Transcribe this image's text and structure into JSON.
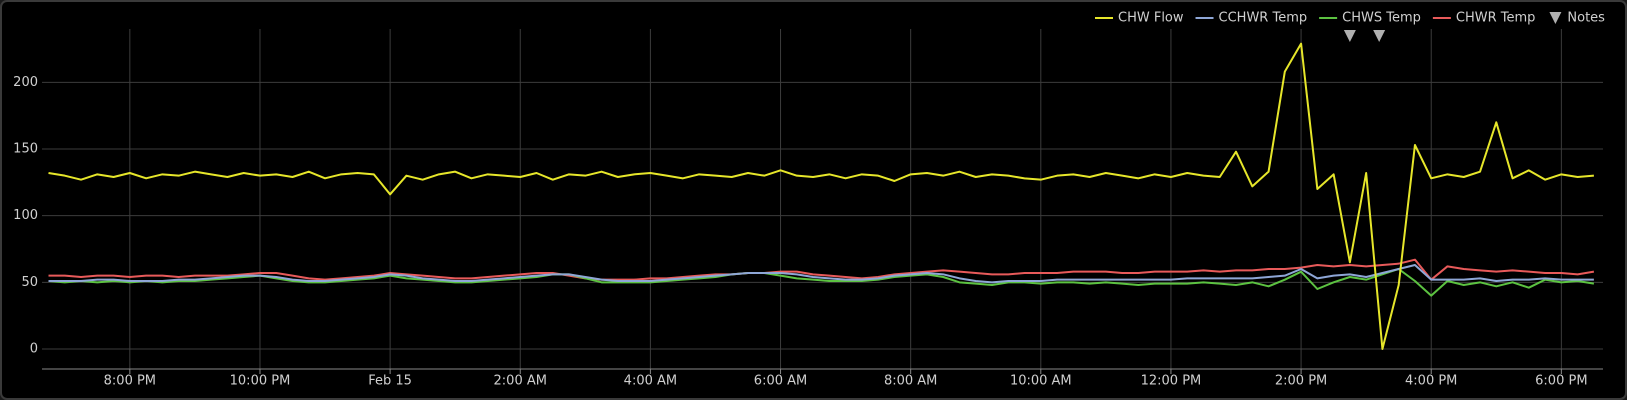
{
  "chart_data": {
    "type": "line",
    "x": [
      -5.25,
      -5,
      -4.75,
      -4.5,
      -4.25,
      -4,
      -3.75,
      -3.5,
      -3.25,
      -3,
      -2.75,
      -2.5,
      -2.25,
      -2,
      -1.75,
      -1.5,
      -1.25,
      -1,
      -0.75,
      -0.5,
      -0.25,
      0,
      0.25,
      0.5,
      0.75,
      1,
      1.25,
      1.5,
      1.75,
      2,
      2.25,
      2.5,
      2.75,
      3,
      3.25,
      3.5,
      3.75,
      4,
      4.25,
      4.5,
      4.75,
      5,
      5.25,
      5.5,
      5.75,
      6,
      6.25,
      6.5,
      6.75,
      7,
      7.25,
      7.5,
      7.75,
      8,
      8.25,
      8.5,
      8.75,
      9,
      9.25,
      9.5,
      9.75,
      10,
      10.25,
      10.5,
      10.75,
      11,
      11.25,
      11.5,
      11.75,
      12,
      12.25,
      12.5,
      12.75,
      13,
      13.25,
      13.5,
      13.75,
      14,
      14.25,
      14.5,
      14.75,
      15,
      15.25,
      15.5,
      15.75,
      16,
      16.25,
      16.5,
      16.75,
      17,
      17.25,
      17.5,
      17.75,
      18,
      18.25,
      18.5
    ],
    "series": [
      {
        "name": "CHW Flow",
        "color": "#e6e62a",
        "values": [
          132,
          130,
          127,
          131,
          129,
          132,
          128,
          131,
          130,
          133,
          131,
          129,
          132,
          130,
          131,
          129,
          133,
          128,
          131,
          132,
          131,
          116,
          130,
          127,
          131,
          133,
          128,
          131,
          130,
          129,
          132,
          127,
          131,
          130,
          133,
          129,
          131,
          132,
          130,
          128,
          131,
          130,
          129,
          132,
          130,
          134,
          130,
          129,
          131,
          128,
          131,
          130,
          126,
          131,
          132,
          130,
          133,
          129,
          131,
          130,
          128,
          127,
          130,
          131,
          129,
          132,
          130,
          128,
          131,
          129,
          132,
          130,
          129,
          148,
          122,
          133,
          208,
          229,
          120,
          131,
          65,
          132,
          0,
          48,
          153,
          128,
          131,
          129,
          133,
          170,
          128,
          134,
          127,
          131,
          129,
          130
        ]
      },
      {
        "name": "CCHWR Temp",
        "color": "#8ea6d6",
        "values": [
          51,
          51,
          51,
          52,
          52,
          51,
          51,
          51,
          52,
          52,
          53,
          54,
          55,
          55,
          54,
          52,
          51,
          51,
          52,
          53,
          54,
          56,
          55,
          53,
          52,
          51,
          51,
          52,
          53,
          54,
          55,
          56,
          56,
          54,
          52,
          51,
          51,
          51,
          52,
          53,
          54,
          55,
          56,
          57,
          57,
          57,
          56,
          54,
          53,
          52,
          52,
          53,
          55,
          56,
          57,
          56,
          53,
          51,
          50,
          51,
          51,
          51,
          52,
          52,
          52,
          52,
          52,
          52,
          52,
          52,
          53,
          53,
          53,
          53,
          53,
          54,
          55,
          60,
          53,
          55,
          56,
          54,
          57,
          60,
          63,
          52,
          52,
          52,
          53,
          51,
          52,
          52,
          53,
          52,
          52,
          52
        ]
      },
      {
        "name": "CHWS Temp",
        "color": "#5cc241",
        "values": [
          51,
          50,
          51,
          50,
          51,
          50,
          51,
          50,
          51,
          51,
          52,
          53,
          54,
          55,
          53,
          51,
          50,
          50,
          51,
          52,
          53,
          55,
          53,
          52,
          51,
          50,
          50,
          51,
          52,
          53,
          54,
          56,
          56,
          53,
          50,
          50,
          50,
          50,
          51,
          52,
          53,
          54,
          56,
          57,
          57,
          55,
          53,
          52,
          51,
          51,
          51,
          52,
          54,
          55,
          56,
          54,
          50,
          49,
          48,
          50,
          50,
          49,
          50,
          50,
          49,
          50,
          49,
          48,
          49,
          49,
          49,
          50,
          49,
          48,
          50,
          47,
          52,
          58,
          45,
          50,
          54,
          52,
          56,
          60,
          51,
          40,
          51,
          48,
          50,
          47,
          50,
          46,
          52,
          50,
          51,
          49
        ]
      },
      {
        "name": "CHWR Temp",
        "color": "#e85a5a",
        "values": [
          55,
          55,
          54,
          55,
          55,
          54,
          55,
          55,
          54,
          55,
          55,
          55,
          56,
          57,
          57,
          55,
          53,
          52,
          53,
          54,
          55,
          57,
          56,
          55,
          54,
          53,
          53,
          54,
          55,
          56,
          57,
          57,
          55,
          53,
          52,
          52,
          52,
          53,
          53,
          54,
          55,
          56,
          56,
          57,
          57,
          58,
          58,
          56,
          55,
          54,
          53,
          54,
          56,
          57,
          58,
          59,
          58,
          57,
          56,
          56,
          57,
          57,
          57,
          58,
          58,
          58,
          57,
          57,
          58,
          58,
          58,
          59,
          58,
          59,
          59,
          60,
          60,
          61,
          63,
          62,
          63,
          62,
          63,
          64,
          67,
          52,
          62,
          60,
          59,
          58,
          59,
          58,
          57,
          57,
          56,
          58
        ]
      }
    ],
    "notes": {
      "name": "Notes",
      "color": "#b0b0b0",
      "x": [
        14.75,
        15.2
      ]
    },
    "xlim": [
      -5.35,
      18.64
    ],
    "xticks": [
      {
        "value": -4,
        "label": "8:00 PM"
      },
      {
        "value": -2,
        "label": "10:00 PM"
      },
      {
        "value": 0,
        "label": "Feb 15"
      },
      {
        "value": 2,
        "label": "2:00 AM"
      },
      {
        "value": 4,
        "label": "4:00 AM"
      },
      {
        "value": 6,
        "label": "6:00 AM"
      },
      {
        "value": 8,
        "label": "8:00 AM"
      },
      {
        "value": 10,
        "label": "10:00 AM"
      },
      {
        "value": 12,
        "label": "12:00 PM"
      },
      {
        "value": 14,
        "label": "2:00 PM"
      },
      {
        "value": 16,
        "label": "4:00 PM"
      },
      {
        "value": 18,
        "label": "6:00 PM"
      }
    ],
    "ylim": [
      -15,
      240
    ],
    "yticks": [
      0,
      50,
      100,
      150,
      200
    ],
    "grid": true
  }
}
